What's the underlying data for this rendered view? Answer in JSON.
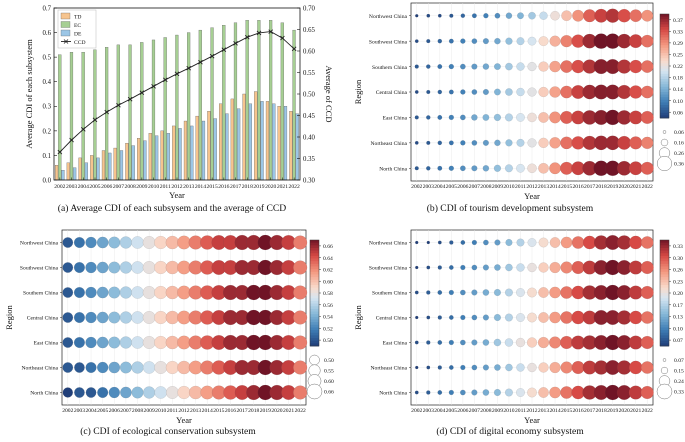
{
  "figure": {
    "captions": {
      "a": "(a) Average CDI of each subsysem and the average of CCD",
      "b": "(b) CDI of tourism development subsystem",
      "c": "(c) CDI of ecological conservation subsystem",
      "d": "(d) CDI of digital economy subsystem"
    }
  },
  "chart_data": [
    {
      "id": "a",
      "type": "bar",
      "title": "",
      "xlabel": "Year",
      "ylabel": "Average CDI of each subsystem",
      "ylabel_right": "Average of CCD",
      "categories": [
        "2002",
        "2003",
        "2004",
        "2005",
        "2006",
        "2007",
        "2008",
        "2009",
        "2010",
        "2011",
        "2012",
        "2013",
        "2014",
        "2015",
        "2016",
        "2017",
        "2018",
        "2019",
        "2020",
        "2021",
        "2022"
      ],
      "ylim": [
        0,
        0.7
      ],
      "yticks": [
        "0.0",
        "0.1",
        "0.2",
        "0.3",
        "0.4",
        "0.5",
        "0.6",
        "0.7"
      ],
      "ylim_right": [
        0.3,
        0.7
      ],
      "yticks_right": [
        "0.30",
        "0.35",
        "0.40",
        "0.45",
        "0.50",
        "0.55",
        "0.60",
        "0.65",
        "0.70"
      ],
      "series": [
        {
          "name": "TD",
          "color": "#f6c48e",
          "values": [
            0.06,
            0.07,
            0.09,
            0.1,
            0.12,
            0.13,
            0.15,
            0.17,
            0.19,
            0.2,
            0.22,
            0.24,
            0.26,
            0.28,
            0.31,
            0.33,
            0.35,
            0.36,
            0.32,
            0.3,
            0.28
          ]
        },
        {
          "name": "EC",
          "color": "#a6cf93",
          "values": [
            0.51,
            0.52,
            0.52,
            0.53,
            0.54,
            0.55,
            0.55,
            0.56,
            0.57,
            0.58,
            0.59,
            0.6,
            0.61,
            0.62,
            0.63,
            0.64,
            0.65,
            0.65,
            0.65,
            0.64,
            0.61
          ]
        },
        {
          "name": "DE",
          "color": "#9cc6e6",
          "values": [
            0.04,
            0.05,
            0.07,
            0.09,
            0.11,
            0.12,
            0.14,
            0.16,
            0.18,
            0.19,
            0.21,
            0.22,
            0.24,
            0.25,
            0.27,
            0.29,
            0.31,
            0.32,
            0.31,
            0.3,
            0.27
          ]
        }
      ],
      "line_series": {
        "name": "CCD",
        "axis": "right",
        "values": [
          0.365,
          0.393,
          0.418,
          0.44,
          0.458,
          0.474,
          0.488,
          0.503,
          0.518,
          0.533,
          0.547,
          0.56,
          0.574,
          0.588,
          0.603,
          0.618,
          0.632,
          0.642,
          0.645,
          0.63,
          0.605
        ]
      },
      "legend": "top-left"
    },
    {
      "id": "b",
      "type": "heatmap",
      "subtitle": "Tourism development subsystem",
      "xlabel": "Year",
      "ylabel": "Region",
      "x": [
        "2002",
        "2003",
        "2004",
        "2005",
        "2006",
        "2007",
        "2008",
        "2009",
        "2010",
        "2011",
        "2012",
        "2013",
        "2014",
        "2015",
        "2016",
        "2017",
        "2018",
        "2019",
        "2020",
        "2021",
        "2022"
      ],
      "rows": [
        "Northwest China",
        "Southwest China",
        "Southern China",
        "Central China",
        "East China",
        "Northeast China",
        "North China"
      ],
      "vmin": 0.06,
      "vmax": 0.37,
      "colorbar_ticks": [
        "0.37",
        "0.33",
        "0.29",
        "0.25",
        "0.22",
        "0.18",
        "0.14",
        "0.10",
        "0.06"
      ],
      "size_legend": [
        "0.06",
        "0.16",
        "0.26",
        "0.36"
      ],
      "values": [
        [
          0.06,
          0.07,
          0.07,
          0.08,
          0.09,
          0.1,
          0.11,
          0.12,
          0.14,
          0.15,
          0.17,
          0.19,
          0.22,
          0.25,
          0.28,
          0.31,
          0.33,
          0.34,
          0.32,
          0.3,
          0.28
        ],
        [
          0.07,
          0.08,
          0.09,
          0.1,
          0.11,
          0.12,
          0.13,
          0.14,
          0.16,
          0.18,
          0.2,
          0.23,
          0.26,
          0.29,
          0.32,
          0.35,
          0.37,
          0.37,
          0.35,
          0.33,
          0.3
        ],
        [
          0.08,
          0.09,
          0.1,
          0.11,
          0.12,
          0.13,
          0.14,
          0.15,
          0.17,
          0.19,
          0.21,
          0.24,
          0.27,
          0.3,
          0.32,
          0.34,
          0.36,
          0.36,
          0.34,
          0.32,
          0.3
        ],
        [
          0.07,
          0.08,
          0.09,
          0.1,
          0.11,
          0.12,
          0.13,
          0.15,
          0.17,
          0.19,
          0.21,
          0.24,
          0.27,
          0.3,
          0.33,
          0.35,
          0.36,
          0.36,
          0.34,
          0.32,
          0.3
        ],
        [
          0.08,
          0.09,
          0.1,
          0.11,
          0.12,
          0.14,
          0.15,
          0.16,
          0.18,
          0.2,
          0.22,
          0.25,
          0.28,
          0.31,
          0.33,
          0.35,
          0.36,
          0.37,
          0.35,
          0.33,
          0.31
        ],
        [
          0.07,
          0.08,
          0.09,
          0.1,
          0.11,
          0.12,
          0.13,
          0.14,
          0.16,
          0.18,
          0.21,
          0.24,
          0.27,
          0.3,
          0.32,
          0.34,
          0.35,
          0.35,
          0.33,
          0.31,
          0.29
        ],
        [
          0.08,
          0.09,
          0.1,
          0.11,
          0.12,
          0.13,
          0.14,
          0.16,
          0.18,
          0.2,
          0.22,
          0.25,
          0.28,
          0.31,
          0.33,
          0.35,
          0.37,
          0.37,
          0.35,
          0.33,
          0.31
        ]
      ]
    },
    {
      "id": "c",
      "type": "heatmap",
      "subtitle": "Ecological conservation subsystem",
      "xlabel": "Year",
      "ylabel": "Region",
      "x": [
        "2002",
        "2003",
        "2004",
        "2005",
        "2006",
        "2007",
        "2008",
        "2009",
        "2010",
        "2011",
        "2012",
        "2013",
        "2014",
        "2015",
        "2016",
        "2017",
        "2018",
        "2019",
        "2020",
        "2021",
        "2022"
      ],
      "rows": [
        "Northwest China",
        "Southwest China",
        "Southern China",
        "Central China",
        "East China",
        "Northeast China",
        "North China"
      ],
      "vmin": 0.5,
      "vmax": 0.66,
      "colorbar_ticks": [
        "0.66",
        "0.64",
        "0.62",
        "0.60",
        "0.58",
        "0.56",
        "0.54",
        "0.52",
        "0.50"
      ],
      "size_legend": [
        "0.50",
        "0.55",
        "0.60",
        "0.66"
      ],
      "values": [
        [
          0.51,
          0.52,
          0.53,
          0.54,
          0.55,
          0.56,
          0.57,
          0.58,
          0.59,
          0.6,
          0.61,
          0.62,
          0.63,
          0.64,
          0.64,
          0.65,
          0.65,
          0.66,
          0.65,
          0.64,
          0.62
        ],
        [
          0.51,
          0.52,
          0.53,
          0.54,
          0.55,
          0.56,
          0.57,
          0.58,
          0.59,
          0.6,
          0.61,
          0.62,
          0.63,
          0.64,
          0.64,
          0.65,
          0.65,
          0.66,
          0.65,
          0.64,
          0.62
        ],
        [
          0.51,
          0.52,
          0.53,
          0.54,
          0.55,
          0.56,
          0.57,
          0.58,
          0.59,
          0.6,
          0.61,
          0.62,
          0.63,
          0.64,
          0.65,
          0.65,
          0.66,
          0.66,
          0.65,
          0.64,
          0.62
        ],
        [
          0.51,
          0.52,
          0.53,
          0.54,
          0.55,
          0.56,
          0.57,
          0.58,
          0.59,
          0.6,
          0.61,
          0.62,
          0.63,
          0.64,
          0.65,
          0.65,
          0.66,
          0.66,
          0.65,
          0.64,
          0.62
        ],
        [
          0.51,
          0.52,
          0.53,
          0.54,
          0.55,
          0.56,
          0.57,
          0.58,
          0.59,
          0.6,
          0.61,
          0.62,
          0.63,
          0.64,
          0.65,
          0.65,
          0.66,
          0.66,
          0.65,
          0.64,
          0.62
        ],
        [
          0.51,
          0.51,
          0.52,
          0.53,
          0.54,
          0.55,
          0.56,
          0.57,
          0.58,
          0.59,
          0.6,
          0.61,
          0.62,
          0.63,
          0.64,
          0.65,
          0.65,
          0.66,
          0.65,
          0.64,
          0.62
        ],
        [
          0.5,
          0.51,
          0.51,
          0.52,
          0.53,
          0.54,
          0.55,
          0.56,
          0.57,
          0.58,
          0.59,
          0.6,
          0.61,
          0.62,
          0.63,
          0.64,
          0.65,
          0.66,
          0.65,
          0.64,
          0.62
        ]
      ]
    },
    {
      "id": "d",
      "type": "heatmap",
      "subtitle": "Digital economy subsystem",
      "xlabel": "Year",
      "ylabel": "Region",
      "x": [
        "2002",
        "2003",
        "2004",
        "2005",
        "2006",
        "2007",
        "2008",
        "2009",
        "2010",
        "2011",
        "2012",
        "2013",
        "2014",
        "2015",
        "2016",
        "2017",
        "2018",
        "2019",
        "2020",
        "2021",
        "2022"
      ],
      "rows": [
        "Northwest China",
        "Southwest China",
        "Southern China",
        "Central China",
        "East China",
        "Northeast China",
        "North China"
      ],
      "vmin": 0.07,
      "vmax": 0.33,
      "colorbar_ticks": [
        "0.33",
        "0.30",
        "0.26",
        "0.23",
        "0.20",
        "0.17",
        "0.13",
        "0.10",
        "0.07"
      ],
      "size_legend": [
        "0.07",
        "0.15",
        "0.24",
        "0.33"
      ],
      "values": [
        [
          0.07,
          0.07,
          0.08,
          0.09,
          0.1,
          0.11,
          0.12,
          0.13,
          0.15,
          0.17,
          0.19,
          0.21,
          0.23,
          0.25,
          0.27,
          0.29,
          0.31,
          0.32,
          0.31,
          0.29,
          0.27
        ],
        [
          0.07,
          0.08,
          0.09,
          0.1,
          0.11,
          0.12,
          0.13,
          0.14,
          0.16,
          0.18,
          0.2,
          0.22,
          0.24,
          0.26,
          0.28,
          0.3,
          0.32,
          0.33,
          0.32,
          0.3,
          0.28
        ],
        [
          0.08,
          0.09,
          0.1,
          0.11,
          0.12,
          0.13,
          0.14,
          0.15,
          0.17,
          0.19,
          0.21,
          0.23,
          0.25,
          0.27,
          0.29,
          0.31,
          0.32,
          0.33,
          0.32,
          0.3,
          0.28
        ],
        [
          0.07,
          0.08,
          0.09,
          0.1,
          0.11,
          0.12,
          0.13,
          0.15,
          0.17,
          0.19,
          0.21,
          0.23,
          0.25,
          0.27,
          0.29,
          0.3,
          0.32,
          0.32,
          0.31,
          0.29,
          0.27
        ],
        [
          0.08,
          0.09,
          0.1,
          0.11,
          0.12,
          0.13,
          0.14,
          0.16,
          0.18,
          0.2,
          0.22,
          0.24,
          0.26,
          0.28,
          0.3,
          0.31,
          0.32,
          0.33,
          0.32,
          0.3,
          0.28
        ],
        [
          0.07,
          0.08,
          0.09,
          0.1,
          0.11,
          0.12,
          0.13,
          0.14,
          0.16,
          0.18,
          0.2,
          0.22,
          0.24,
          0.26,
          0.28,
          0.3,
          0.31,
          0.32,
          0.31,
          0.29,
          0.27
        ],
        [
          0.08,
          0.09,
          0.1,
          0.11,
          0.12,
          0.13,
          0.14,
          0.15,
          0.17,
          0.19,
          0.21,
          0.23,
          0.25,
          0.27,
          0.29,
          0.31,
          0.32,
          0.33,
          0.32,
          0.3,
          0.28
        ]
      ]
    }
  ]
}
